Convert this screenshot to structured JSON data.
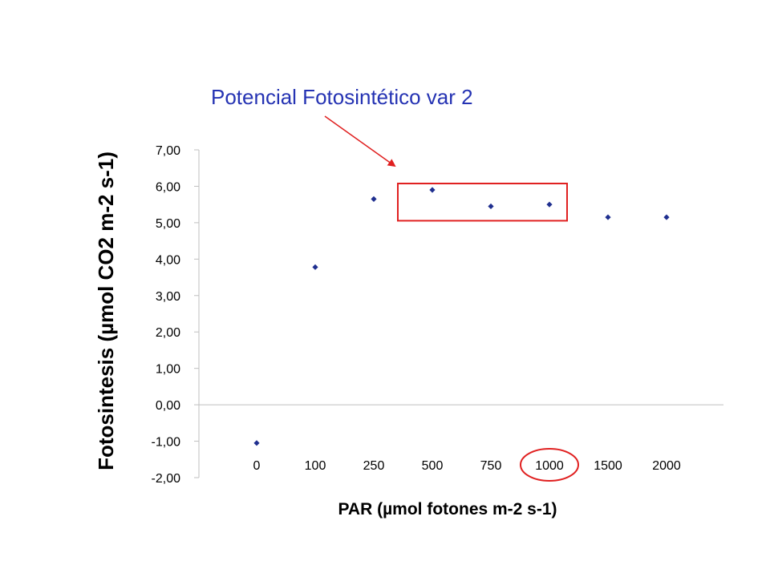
{
  "chart_data": {
    "type": "scatter",
    "annotation": "Potencial Fotosintético var 2",
    "xlabel": "PAR (µmol  fotones m-2 s-1)",
    "ylabel": "Fotosintesis (µmol  CO2 m-2 s-1)",
    "categories": [
      "0",
      "100",
      "250",
      "500",
      "750",
      "1000",
      "1500",
      "2000"
    ],
    "values": [
      -1.05,
      3.78,
      5.65,
      5.9,
      5.45,
      5.5,
      5.15,
      5.15
    ],
    "yticks": [
      "-2,00",
      "-1,00",
      "0,00",
      "1,00",
      "2,00",
      "3,00",
      "4,00",
      "5,00",
      "6,00",
      "7,00"
    ],
    "ylim": [
      -2,
      7
    ],
    "grid": false,
    "highlight_box_categories": [
      "500",
      "750",
      "1000"
    ],
    "circled_category": "1000",
    "colors": {
      "marker": "#1f2f8f",
      "annotation_text": "#2533b3",
      "highlight": "#e02020",
      "axis": "#bfbfbf",
      "text": "#000000"
    }
  }
}
